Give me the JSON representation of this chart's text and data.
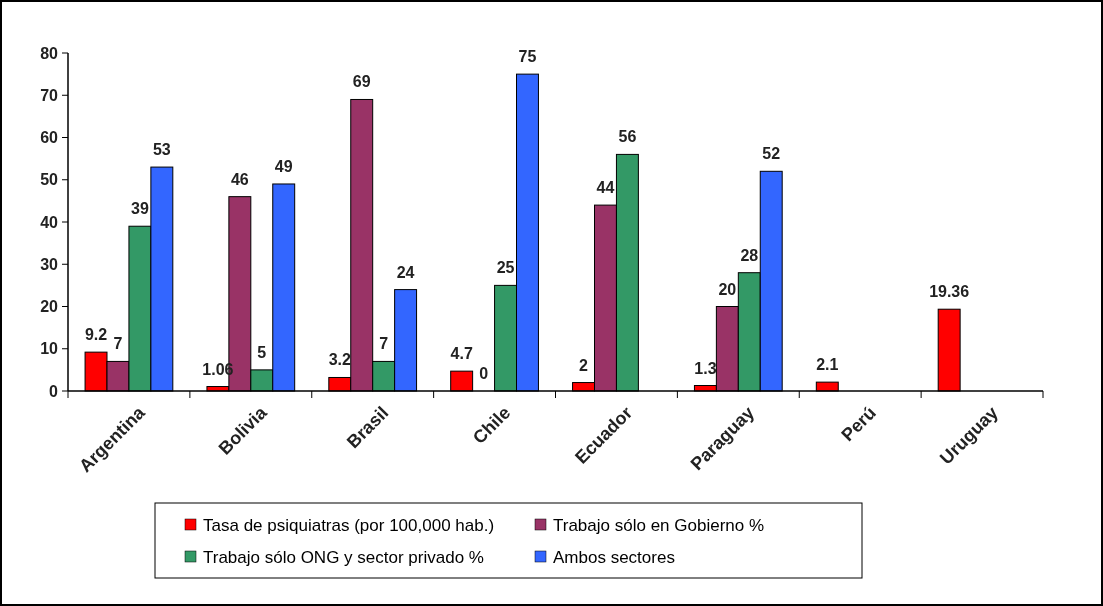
{
  "chart_data": {
    "type": "bar",
    "categories": [
      "Argentina",
      "Bolivia",
      "Brasil",
      "Chile",
      "Ecuador",
      "Paraguay",
      "Perú",
      "Uruguay"
    ],
    "series": [
      {
        "name": "Tasa de psiquiatras (por 100,000 hab.)",
        "color": "#ff0000",
        "values": [
          9.2,
          1.06,
          3.2,
          4.7,
          2,
          1.3,
          2.1,
          19.36
        ]
      },
      {
        "name": "Trabajo sólo en Gobierno %",
        "color": "#993366",
        "values": [
          7,
          46,
          69,
          0,
          44,
          20,
          null,
          null
        ]
      },
      {
        "name": "Trabajo sólo ONG y sector privado %",
        "color": "#339966",
        "values": [
          39,
          5,
          7,
          25,
          56,
          28,
          null,
          null
        ]
      },
      {
        "name": "Ambos sectores",
        "color": "#3366ff",
        "values": [
          53,
          49,
          24,
          75,
          null,
          52,
          null,
          null
        ]
      }
    ],
    "ylim": [
      0,
      80
    ],
    "yticks": [
      0,
      10,
      20,
      30,
      40,
      50,
      60,
      70,
      80
    ],
    "data_labels": true,
    "grid": false,
    "legend": "bottom"
  }
}
